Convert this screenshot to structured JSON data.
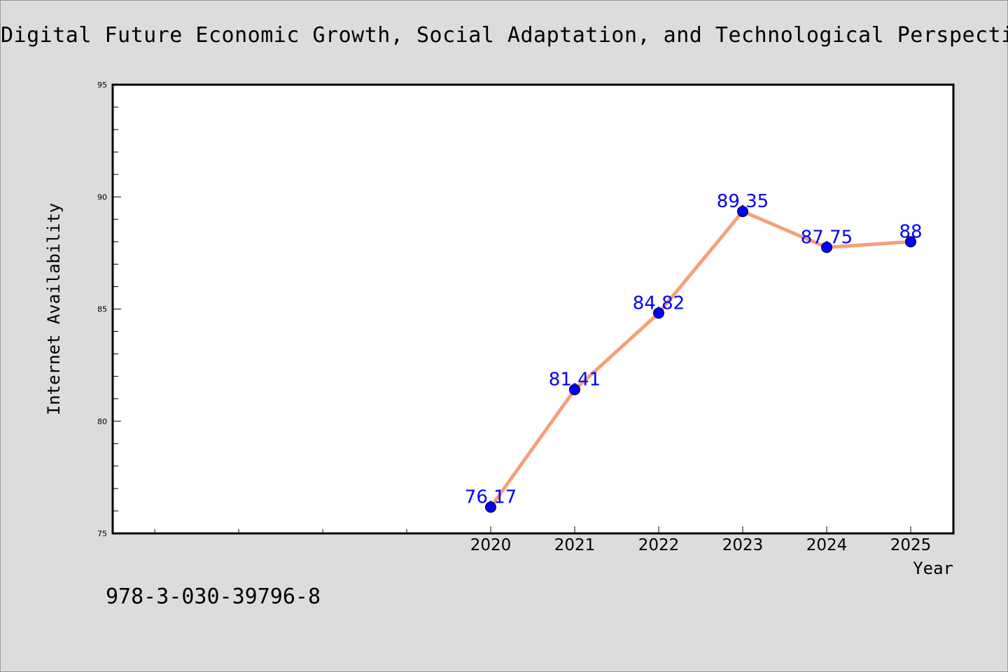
{
  "chart_data": {
    "type": "line",
    "title": "Digital Future Economic Growth, Social Adaptation, and Technological Perspective",
    "xlabel": "Year",
    "ylabel": "Internet Availability",
    "x": [
      "2020",
      "2021",
      "2022",
      "2023",
      "2024",
      "2025"
    ],
    "series": [
      {
        "values": [
          76.17,
          81.41,
          84.82,
          89.35,
          87.75,
          88
        ],
        "data_labels": [
          "76.17",
          "81.41",
          "84.82",
          "89.35",
          "87.75",
          "88"
        ]
      }
    ],
    "ylim": [
      75,
      95
    ],
    "yticks": [
      "75",
      "80",
      "85",
      "90",
      "95"
    ],
    "x_tick_labels": [
      "2020",
      "2021",
      "2022",
      "2023",
      "2024",
      "2025"
    ],
    "grid": false,
    "legend": "none",
    "colors": {
      "line": "#f4a07a",
      "marker": "#0000ff",
      "data_label": "#0000ff",
      "plot_background": "#ffffff",
      "figure_background": "#dcdcdc"
    }
  },
  "footer": {
    "id": "978-3-030-39796-8"
  }
}
